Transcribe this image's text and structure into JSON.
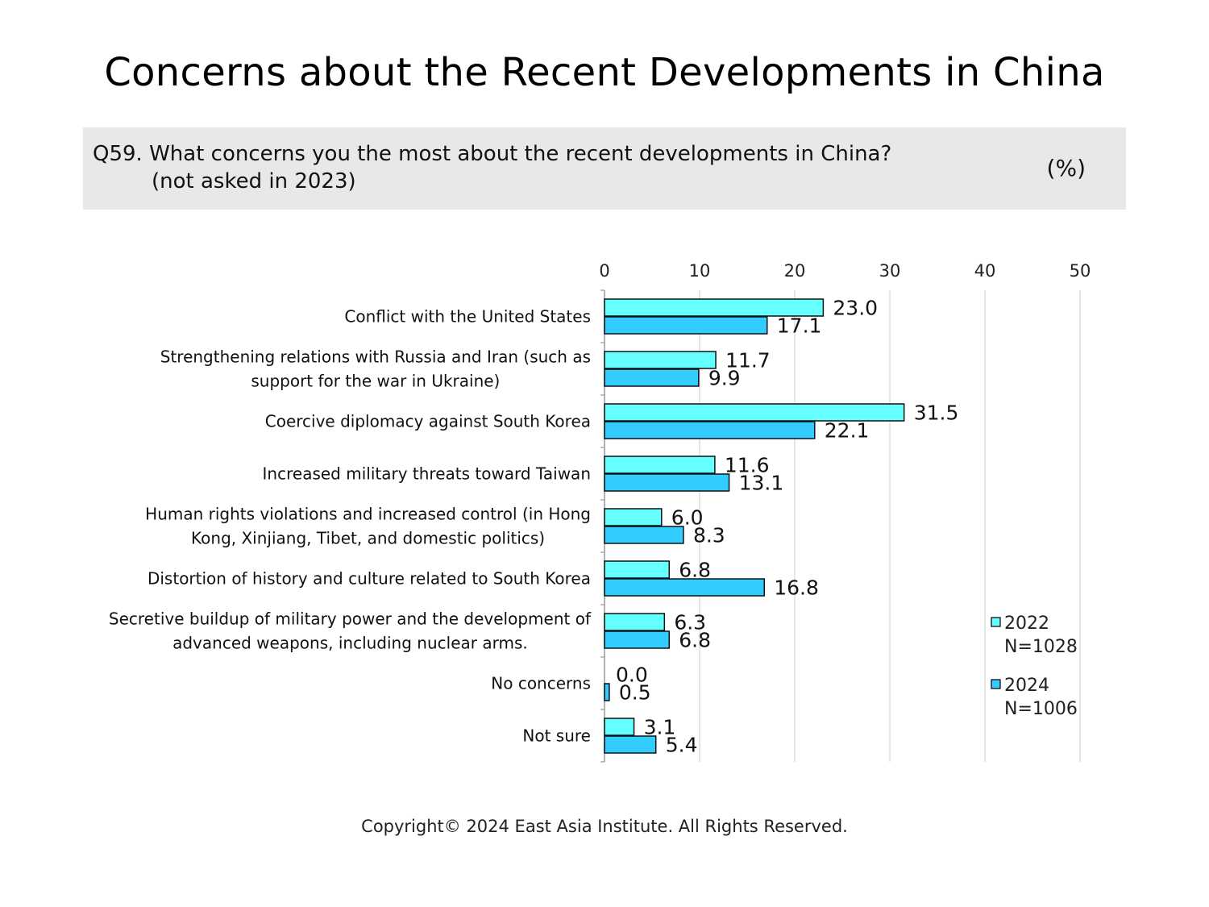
{
  "title": "Concerns about the Recent Developments in China",
  "question": {
    "line1": "Q59. What concerns you the most about the recent developments in China?",
    "line2": "(not asked in 2023)",
    "unit": "(%)"
  },
  "chart_data": {
    "type": "bar",
    "orientation": "horizontal",
    "categories": [
      [
        "Conflict with the United States"
      ],
      [
        "Strengthening relations with Russia and Iran (such as",
        "support for the war in Ukraine)"
      ],
      [
        "Coercive diplomacy against South Korea"
      ],
      [
        "Increased military threats toward Taiwan"
      ],
      [
        "Human rights violations and increased control (in Hong",
        "Kong, Xinjiang, Tibet, and domestic politics)"
      ],
      [
        "Distortion of history and culture related to South Korea"
      ],
      [
        "Secretive buildup of military power and the development of",
        "advanced weapons, including nuclear arms."
      ],
      [
        "No concerns"
      ],
      [
        "Not sure"
      ]
    ],
    "series": [
      {
        "name": "2022",
        "sample": "N=1028",
        "color": "#66ffff",
        "values": [
          23.0,
          11.7,
          31.5,
          11.6,
          6.0,
          6.8,
          6.3,
          0.0,
          3.1
        ],
        "labels": [
          "23.0",
          "11.7",
          "31.5",
          "11.6",
          "6.0",
          "6.8",
          "6.3",
          "0.0",
          "3.1"
        ]
      },
      {
        "name": "2024",
        "sample": "N=1006",
        "color": "#33ccff",
        "values": [
          17.1,
          9.9,
          22.1,
          13.1,
          8.3,
          16.8,
          6.8,
          0.5,
          5.4
        ],
        "labels": [
          "17.1",
          "9.9",
          "22.1",
          "13.1",
          "8.3",
          "16.8",
          "6.8",
          "0.5",
          "5.4"
        ]
      }
    ],
    "xlim": [
      0,
      50
    ],
    "xticks": [
      0,
      10,
      20,
      30,
      40,
      50
    ],
    "grid": true,
    "legend_position": "bottom-right"
  },
  "copyright": "Copyright© 2024 East Asia Institute. All Rights Reserved."
}
